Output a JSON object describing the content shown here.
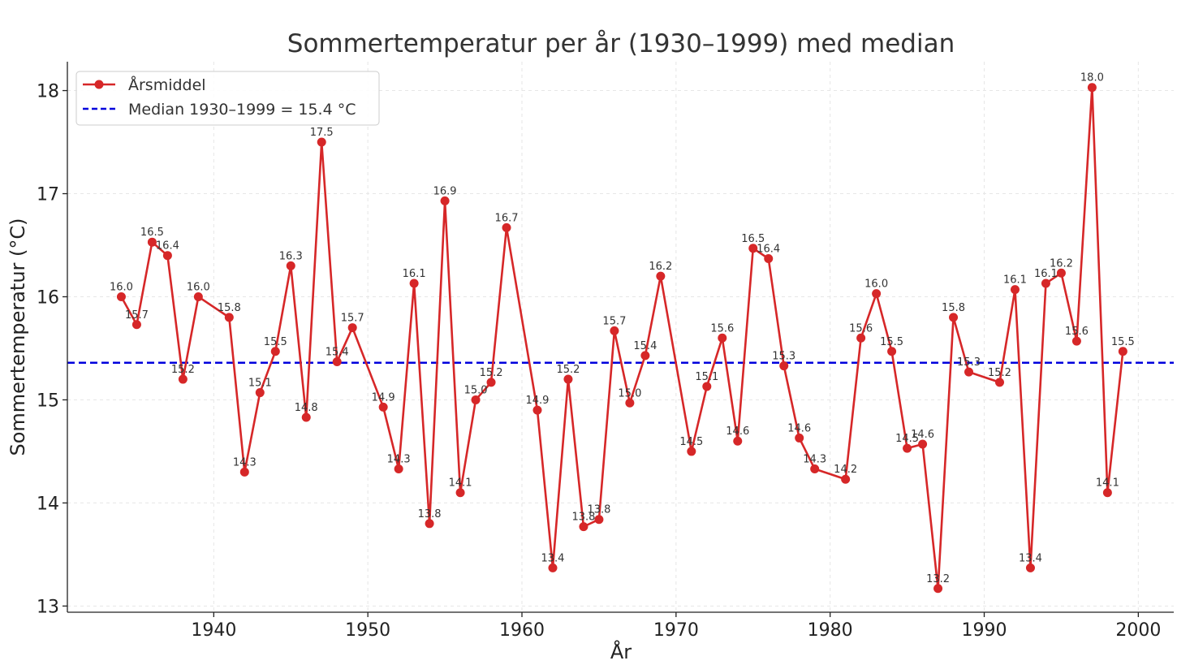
{
  "chart_data": {
    "type": "line",
    "title": "Sommertemperatur per år (1930–1999) med median",
    "xlabel": "År",
    "ylabel": "Sommertemperatur (°C)",
    "xlim": [
      1930.5,
      2002.3
    ],
    "ylim": [
      12.94,
      18.28
    ],
    "xticks": [
      1940,
      1950,
      1960,
      1970,
      1980,
      1990,
      2000
    ],
    "xtick_labels": [
      "1940",
      "1950",
      "1960",
      "1970",
      "1980",
      "1990",
      "2000"
    ],
    "yticks": [
      13,
      14,
      15,
      16,
      17,
      18
    ],
    "ytick_labels": [
      "13",
      "14",
      "15",
      "16",
      "17",
      "18"
    ],
    "grid": true,
    "legend_position": "top-left",
    "series": [
      {
        "name": "Årsmiddel",
        "color": "#d62728",
        "x": [
          1934,
          1935,
          1936,
          1937,
          1938,
          1939,
          1941,
          1942,
          1943,
          1944,
          1945,
          1946,
          1947,
          1948,
          1949,
          1951,
          1952,
          1953,
          1954,
          1955,
          1956,
          1957,
          1958,
          1959,
          1961,
          1962,
          1963,
          1964,
          1965,
          1966,
          1967,
          1968,
          1969,
          1971,
          1972,
          1973,
          1974,
          1975,
          1976,
          1977,
          1978,
          1979,
          1981,
          1982,
          1983,
          1984,
          1985,
          1986,
          1987,
          1988,
          1989,
          1991,
          1992,
          1993,
          1994,
          1995,
          1996,
          1997,
          1998,
          1999
        ],
        "values": [
          16.0,
          15.73,
          16.53,
          16.4,
          15.2,
          16.0,
          15.8,
          14.3,
          15.07,
          15.47,
          16.3,
          14.83,
          17.5,
          15.37,
          15.7,
          14.93,
          14.33,
          16.13,
          13.8,
          16.93,
          14.1,
          15.0,
          15.17,
          16.67,
          14.9,
          13.37,
          15.2,
          13.77,
          13.84,
          15.67,
          14.97,
          15.43,
          16.2,
          14.5,
          15.13,
          15.6,
          14.6,
          16.47,
          16.37,
          15.33,
          14.63,
          14.33,
          14.23,
          15.6,
          16.03,
          15.47,
          14.53,
          14.57,
          13.17,
          15.8,
          15.27,
          15.17,
          16.07,
          13.37,
          16.13,
          16.23,
          15.57,
          18.03,
          14.1,
          15.47
        ],
        "labels": [
          "16.0",
          "15.7",
          "16.5",
          "16.4",
          "15.2",
          "16.0",
          "15.8",
          "14.3",
          "15.1",
          "15.5",
          "16.3",
          "14.8",
          "17.5",
          "15.4",
          "15.7",
          "14.9",
          "14.3",
          "16.1",
          "13.8",
          "16.9",
          "14.1",
          "15.0",
          "15.2",
          "16.7",
          "14.9",
          "13.4",
          "15.2",
          "13.8",
          "13.8",
          "15.7",
          "15.0",
          "15.4",
          "16.2",
          "14.5",
          "15.1",
          "15.6",
          "14.6",
          "16.5",
          "16.4",
          "15.3",
          "14.6",
          "14.3",
          "14.2",
          "15.6",
          "16.0",
          "15.5",
          "14.5",
          "14.6",
          "13.2",
          "15.8",
          "15.3",
          "15.2",
          "16.1",
          "13.4",
          "16.1",
          "16.2",
          "15.6",
          "18.0",
          "14.1",
          "15.5"
        ]
      }
    ],
    "median": {
      "name": "Median 1930–1999 = 15.4 °C",
      "value": 15.36,
      "color": "#0000dd"
    }
  }
}
